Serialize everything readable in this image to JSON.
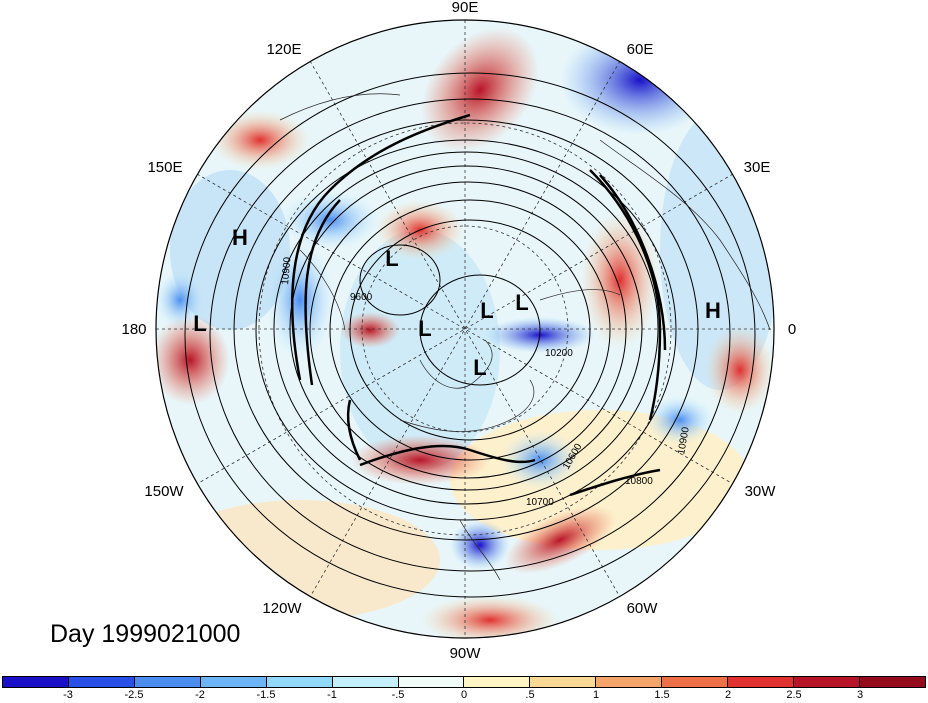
{
  "map": {
    "projection": "north polar stereographic",
    "longitude_labels": [
      "90E",
      "120E",
      "60E",
      "150E",
      "30E",
      "180",
      "0",
      "150W",
      "30W",
      "120W",
      "60W",
      "90W"
    ],
    "pressure_centers": [
      {
        "id": "H1",
        "label": "H"
      },
      {
        "id": "L1",
        "label": "L"
      },
      {
        "id": "L2",
        "label": "L"
      },
      {
        "id": "L3",
        "label": "L"
      },
      {
        "id": "L4",
        "label": "L"
      },
      {
        "id": "L5",
        "label": "L"
      },
      {
        "id": "L6",
        "label": "L"
      },
      {
        "id": "H2",
        "label": "H"
      }
    ],
    "contour_labels": [
      "10900",
      "9600",
      "10200",
      "10600",
      "10700",
      "10800",
      "10900"
    ],
    "date_label": "Day 1999021000"
  },
  "colorbar": {
    "colors": [
      "#1a10c8",
      "#2950e6",
      "#4c8ef0",
      "#6cb4f4",
      "#92d8f8",
      "#c4f0fc",
      "#f0fcf8",
      "#fff4c4",
      "#fad896",
      "#f5a46c",
      "#ee7048",
      "#e03030",
      "#b81428",
      "#940c1c"
    ],
    "tick_labels": [
      "-3",
      "-2.5",
      "-2",
      "-1.5",
      "-1",
      "-.5",
      "0",
      ".5",
      "1",
      "1.5",
      "2",
      "2.5",
      "3"
    ]
  }
}
